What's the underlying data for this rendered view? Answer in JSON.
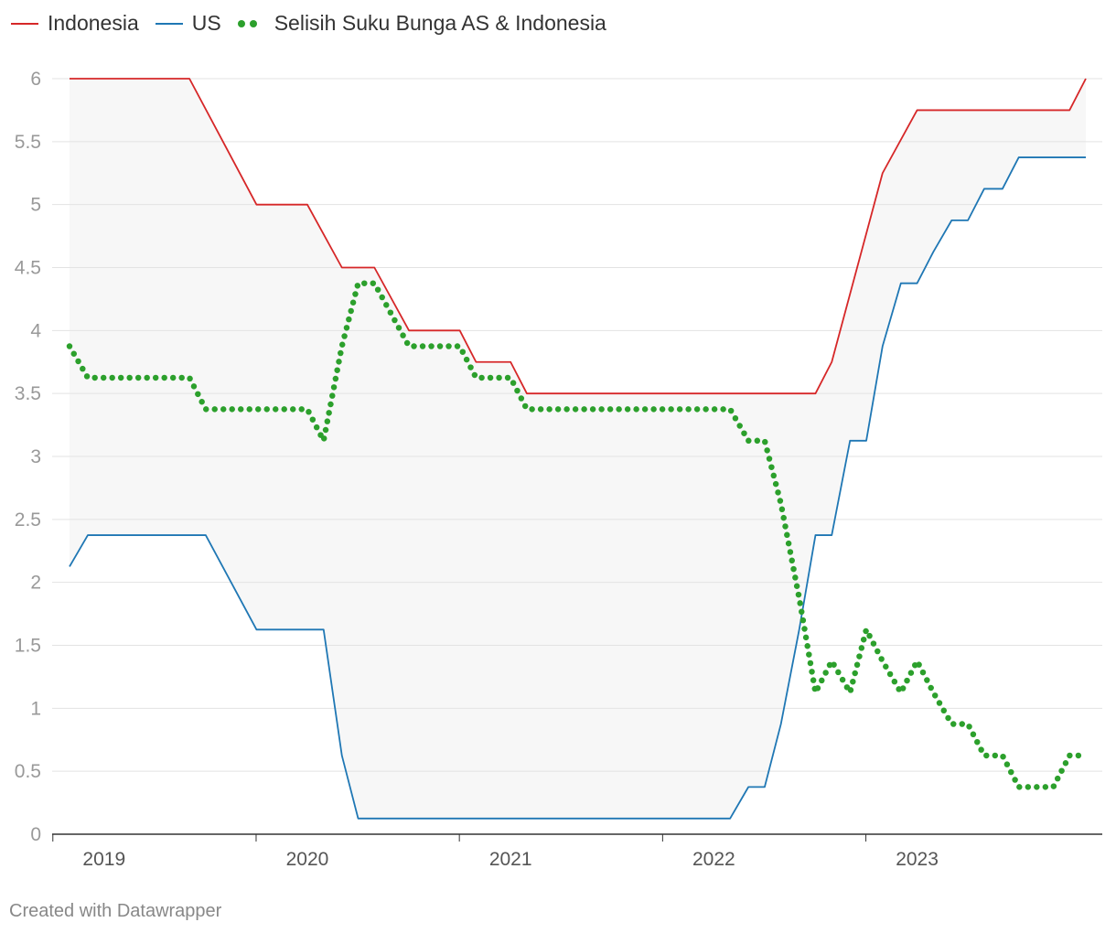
{
  "footer": "Created with Datawrapper",
  "chart_data": {
    "type": "line",
    "title": "",
    "xlabel": "",
    "ylabel": "",
    "ylim": [
      0,
      6
    ],
    "yticks": [
      "0",
      "0.5",
      "1",
      "1.5",
      "2",
      "2.5",
      "3",
      "3.5",
      "4",
      "4.5",
      "5",
      "5.5",
      "6"
    ],
    "xticks": [
      "2019",
      "2020",
      "2021",
      "2022",
      "2023"
    ],
    "xlim": [
      2018.83,
      2023.83
    ],
    "grid": true,
    "legend_position": "top-left",
    "shaded_area_between": [
      "Indonesia",
      "US"
    ],
    "series": [
      {
        "name": "Indonesia",
        "color": "#d62728",
        "style": "line",
        "x": [
          2018.83,
          2019.42,
          2019.75,
          2020.0,
          2020.17,
          2020.33,
          2020.5,
          2020.75,
          2020.83,
          2021.0,
          2021.08,
          2022.5,
          2022.58,
          2022.83,
          2023.0,
          2023.75,
          2023.83
        ],
        "y": [
          6.0,
          6.0,
          5.0,
          5.0,
          4.5,
          4.5,
          4.0,
          4.0,
          3.75,
          3.75,
          3.5,
          3.5,
          3.75,
          5.25,
          5.75,
          5.75,
          6.0
        ]
      },
      {
        "name": "US",
        "color": "#1f77b4",
        "style": "line",
        "x": [
          2018.83,
          2018.92,
          2019.5,
          2019.75,
          2020.08,
          2020.17,
          2020.25,
          2022.08,
          2022.17,
          2022.25,
          2022.33,
          2022.42,
          2022.5,
          2022.58,
          2022.67,
          2022.75,
          2022.83,
          2022.92,
          2023.0,
          2023.08,
          2023.17,
          2023.25,
          2023.33,
          2023.42,
          2023.5,
          2023.58,
          2023.83
        ],
        "y": [
          2.125,
          2.375,
          2.375,
          1.625,
          1.625,
          0.625,
          0.125,
          0.125,
          0.375,
          0.375,
          0.875,
          1.625,
          2.375,
          2.375,
          3.125,
          3.125,
          3.875,
          4.375,
          4.375,
          4.625,
          4.875,
          4.875,
          5.125,
          5.125,
          5.375,
          5.375,
          5.375
        ]
      },
      {
        "name": "Selisih Suku Bunga AS & Indonesia",
        "color": "#2ca02c",
        "style": "dotted",
        "x": [
          2018.83,
          2018.92,
          2019.42,
          2019.5,
          2019.75,
          2020.0,
          2020.08,
          2020.17,
          2020.25,
          2020.33,
          2020.5,
          2020.75,
          2020.83,
          2021.0,
          2021.08,
          2022.08,
          2022.17,
          2022.25,
          2022.33,
          2022.42,
          2022.5,
          2022.58,
          2022.67,
          2022.75,
          2022.83,
          2022.92,
          2023.0,
          2023.08,
          2023.17,
          2023.25,
          2023.33,
          2023.42,
          2023.5,
          2023.58,
          2023.67,
          2023.75,
          2023.83
        ],
        "y": [
          3.875,
          3.625,
          3.625,
          3.375,
          3.375,
          3.375,
          3.125,
          3.875,
          4.375,
          4.375,
          3.875,
          3.875,
          3.625,
          3.625,
          3.375,
          3.375,
          3.125,
          3.125,
          2.625,
          1.875,
          1.125,
          1.375,
          1.125,
          1.625,
          1.375,
          1.125,
          1.375,
          1.125,
          0.875,
          0.875,
          0.625,
          0.625,
          0.375,
          0.375,
          0.375,
          0.625,
          0.625
        ]
      }
    ]
  }
}
